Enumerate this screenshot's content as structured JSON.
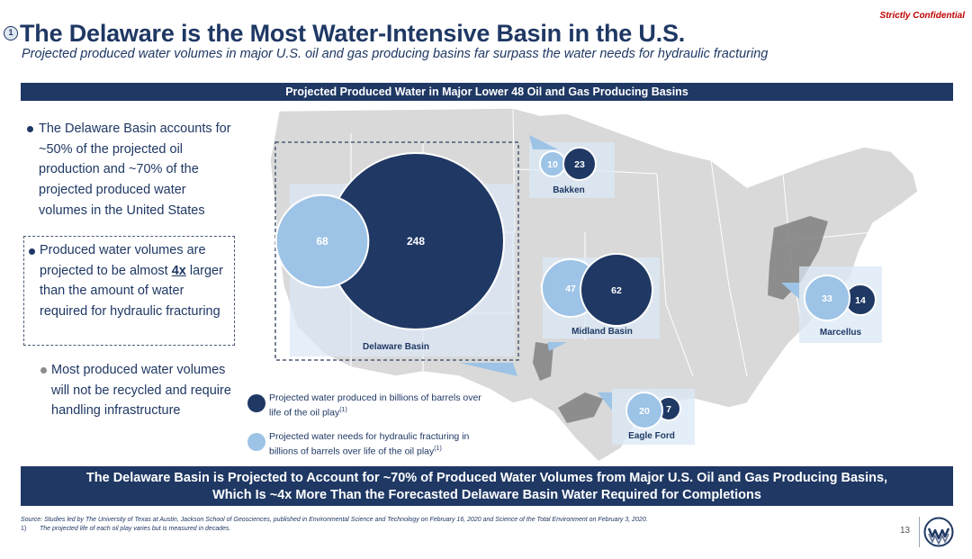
{
  "header": {
    "confidential": "Strictly Confidential",
    "slide_number_badge": "1",
    "title": "The Delaware is the Most Water-Intensive Basin in the U.S.",
    "subtitle": "Projected produced water volumes in major U.S. oil and gas producing basins far surpass the water needs for hydraulic fracturing"
  },
  "top_banner": "Projected Produced Water in Major Lower 48 Oil and Gas Producing Basins",
  "bullets": {
    "b1": "The Delaware Basin accounts for ~50% of the projected oil production and ~70% of the projected produced water volumes in the United States",
    "b2_pre": "Produced water volumes are projected to be almost ",
    "b2_emph": "4x",
    "b2_post": " larger than the amount of water required for hydraulic fracturing",
    "b3": "Most produced water volumes will not be recycled and require handling infrastructure"
  },
  "colors": {
    "produced": "#1f3864",
    "fracking": "#9dc3e6",
    "map_land": "#d6d6d6",
    "basin_shade": "#7f7f7f"
  },
  "chart_data": {
    "type": "bubble",
    "units": "billions of barrels over life of the oil play",
    "series": [
      {
        "name": "Projected water produced in billions of barrels over life of the oil play",
        "color": "#1f3864"
      },
      {
        "name": "Projected water needs for hydraulic fracturing in billions of barrels over life of the oil play",
        "color": "#9dc3e6"
      }
    ],
    "basins": [
      {
        "name": "Delaware Basin",
        "produced": 248,
        "fracking": 68
      },
      {
        "name": "Bakken",
        "produced": 23,
        "fracking": 10
      },
      {
        "name": "Midland Basin",
        "produced": 62,
        "fracking": 47
      },
      {
        "name": "Marcellus",
        "produced": 14,
        "fracking": 33
      },
      {
        "name": "Eagle Ford",
        "produced": 7,
        "fracking": 20
      }
    ]
  },
  "legend": {
    "produced": "Projected water produced in billions of barrels over life of the oil play",
    "fracking": "Projected water needs for hydraulic fracturing in billions of barrels over life of the oil play",
    "footnote_mark": "(1)"
  },
  "bottom_banner": {
    "line1": "The Delaware Basin is Projected to Account for ~70% of Produced Water Volumes from Major U.S. Oil and Gas Producing Basins,",
    "line2": "Which Is ~4x More Than the Forecasted Delaware Basin Water Required for Completions"
  },
  "footer": {
    "source": "Source: Studies led by The University of Texas at Austin, Jackson School of Geosciences, published in Environmental Science and Technology on February 16, 2020 and Science of the Total Environment on February 3, 2020.",
    "note_number": "1)",
    "note": "The projected life of each oil play varies but is measured in decades.",
    "page_number": "13",
    "logo_icon": "company-logo-icon"
  }
}
